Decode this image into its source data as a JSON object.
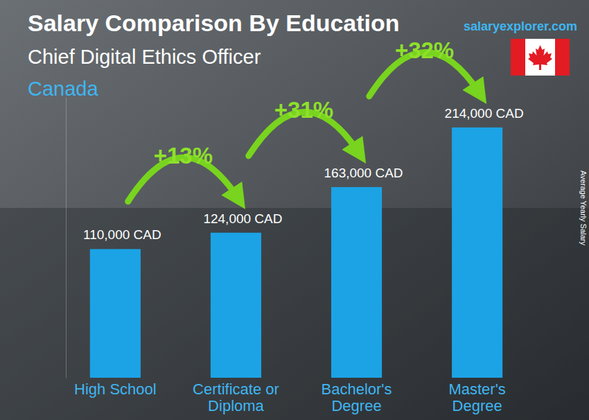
{
  "chart_data": {
    "type": "bar",
    "title": "Salary Comparison By Education",
    "subtitle": "Chief Digital Ethics Officer",
    "country": "Canada",
    "source": "salaryexplorer.com",
    "y_label": "Average Yearly Salary",
    "categories": [
      "High School",
      "Certificate or Diploma",
      "Bachelor's Degree",
      "Master's Degree"
    ],
    "values": [
      110000,
      124000,
      163000,
      214000
    ],
    "value_labels": [
      "110,000 CAD",
      "124,000 CAD",
      "163,000 CAD",
      "214,000 CAD"
    ],
    "annotations": [
      "+13%",
      "+31%",
      "+32%"
    ],
    "color": "#1ba3e6",
    "ylim": [
      0,
      240000
    ],
    "data_labels": true,
    "tick_labels": "x",
    "grid": false
  }
}
